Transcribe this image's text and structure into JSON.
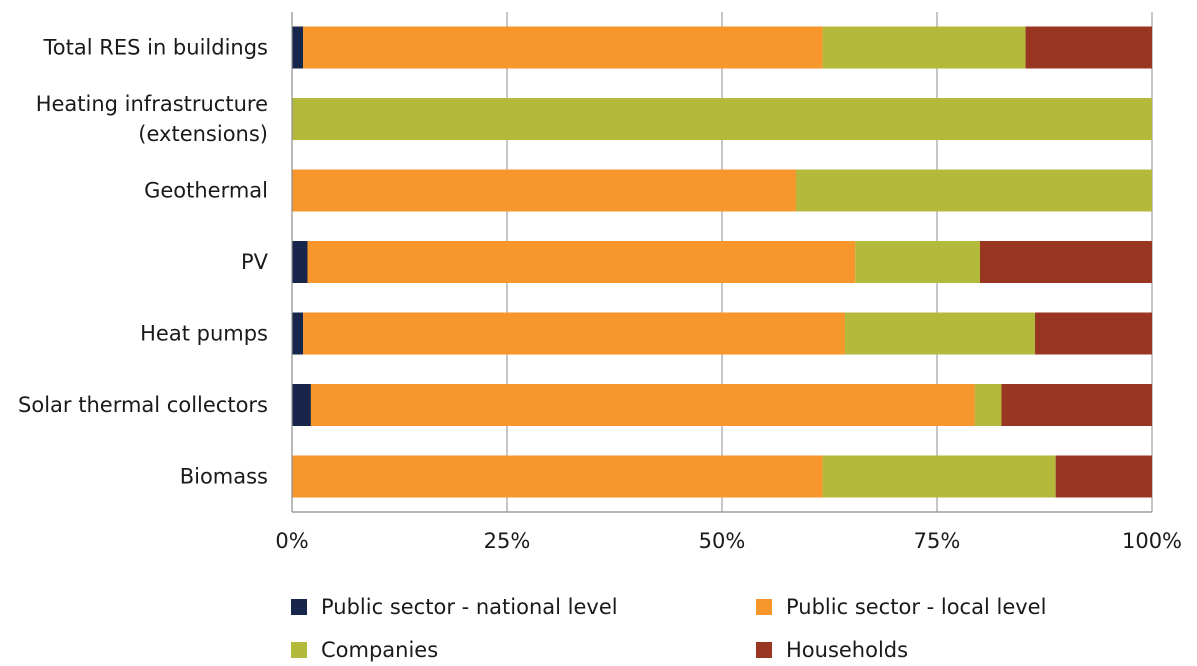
{
  "chart_data": {
    "type": "bar",
    "orientation": "horizontal",
    "stacked": true,
    "categories": [
      "Total RES in buildings",
      "Heating infrastructure (extensions)",
      "Geothermal",
      "PV",
      "Heat pumps",
      "Solar thermal collectors",
      "Biomass"
    ],
    "category_label_lines": [
      [
        "Total RES in buildings"
      ],
      [
        "Heating infrastructure",
        "(extensions)"
      ],
      [
        "Geothermal"
      ],
      [
        "PV"
      ],
      [
        "Heat pumps"
      ],
      [
        "Solar thermal collectors"
      ],
      [
        "Biomass"
      ]
    ],
    "series": [
      {
        "name": "Public sector - national level",
        "color": "#17264a",
        "values": [
          1.3,
          0.0,
          0.0,
          1.8,
          1.3,
          2.2,
          0.0
        ]
      },
      {
        "name": "Public sector - local level",
        "color": "#f7962a",
        "values": [
          60.4,
          0.0,
          58.6,
          63.7,
          63.0,
          77.2,
          61.7
        ]
      },
      {
        "name": "Companies",
        "color": "#b3b93a",
        "values": [
          23.6,
          100.0,
          41.4,
          14.5,
          22.1,
          3.1,
          27.1
        ]
      },
      {
        "name": "Households",
        "color": "#993621",
        "values": [
          14.7,
          0.0,
          0.0,
          20.0,
          13.6,
          17.5,
          11.2
        ]
      }
    ],
    "x_ticks": [
      "0%",
      "25%",
      "50%",
      "75%",
      "100%"
    ],
    "xlim": [
      0,
      100
    ],
    "x_unit": "%",
    "grid": "vertical",
    "legend_position": "bottom",
    "title": "",
    "xlabel": "",
    "ylabel": ""
  }
}
